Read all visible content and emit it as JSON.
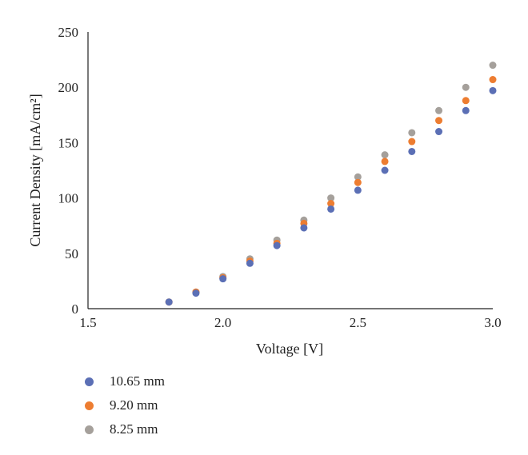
{
  "chart_data": {
    "type": "scatter",
    "xlabel": "Voltage [V]",
    "ylabel": "Current Density [mA/cm²]",
    "xlim": [
      1.5,
      3.0
    ],
    "ylim": [
      0,
      250
    ],
    "x_ticks": [
      "1.5",
      "2.0",
      "2.5",
      "3.0"
    ],
    "y_ticks": [
      "0",
      "50",
      "100",
      "150",
      "200",
      "250"
    ],
    "grid": false,
    "legend_position": "bottom-left",
    "series": [
      {
        "name": "10.65 mm",
        "color": "#5b6fb5",
        "x": [
          1.8,
          1.9,
          2.0,
          2.1,
          2.2,
          2.3,
          2.4,
          2.5,
          2.6,
          2.7,
          2.8,
          2.9,
          3.0
        ],
        "y": [
          6,
          14,
          27,
          41,
          57,
          73,
          90,
          107,
          125,
          142,
          160,
          179,
          197
        ]
      },
      {
        "name": "9.20 mm",
        "color": "#ed7d31",
        "x": [
          1.8,
          1.9,
          2.0,
          2.1,
          2.2,
          2.3,
          2.4,
          2.5,
          2.6,
          2.7,
          2.8,
          2.9,
          3.0
        ],
        "y": [
          6,
          15,
          28,
          43,
          59,
          77,
          95,
          114,
          133,
          151,
          170,
          188,
          207
        ]
      },
      {
        "name": "8.25 mm",
        "color": "#a5a09b",
        "x": [
          1.8,
          1.9,
          2.0,
          2.1,
          2.2,
          2.3,
          2.4,
          2.5,
          2.6,
          2.7,
          2.8,
          2.9,
          3.0
        ],
        "y": [
          6,
          15,
          29,
          45,
          62,
          80,
          100,
          119,
          139,
          159,
          179,
          200,
          220
        ]
      }
    ]
  }
}
